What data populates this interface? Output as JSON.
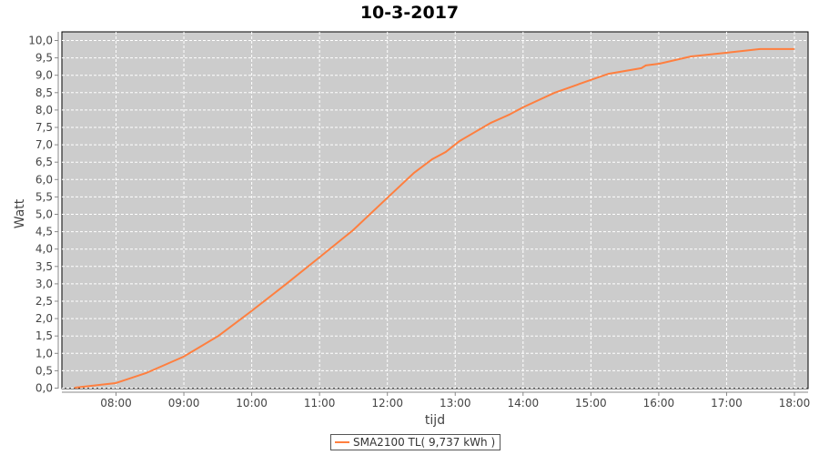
{
  "chart_data": {
    "type": "line",
    "title": "10-3-2017",
    "xlabel": "tijd",
    "ylabel": "Watt",
    "ylim": [
      0,
      10
    ],
    "yticks": [
      "0,0",
      "0,5",
      "1,0",
      "1,5",
      "2,0",
      "2,5",
      "3,0",
      "3,5",
      "4,0",
      "4,5",
      "5,0",
      "5,5",
      "6,0",
      "6,5",
      "7,0",
      "7,5",
      "8,0",
      "8,5",
      "9,0",
      "9,5",
      "10,0"
    ],
    "xticks": [
      "08:00",
      "09:00",
      "10:00",
      "11:00",
      "12:00",
      "13:00",
      "14:00",
      "15:00",
      "16:00",
      "17:00",
      "18:00"
    ],
    "grid": true,
    "legend_position": "bottom",
    "colors": {
      "series": "#ff7f3f",
      "plot_bg": "#cccccc",
      "grid": "#ffffff"
    },
    "series": [
      {
        "name": "SMA2100 TL( 9,737 kWh )",
        "x": [
          "07:24",
          "08:00",
          "08:27",
          "09:00",
          "09:31",
          "10:00",
          "10:30",
          "11:00",
          "11:30",
          "12:00",
          "12:24",
          "12:40",
          "12:52",
          "13:04",
          "13:32",
          "13:48",
          "14:00",
          "14:28",
          "15:00",
          "15:16",
          "15:45",
          "15:49",
          "16:01",
          "16:29",
          "16:59",
          "17:30",
          "18:00"
        ],
        "y": [
          0,
          0.13,
          0.42,
          0.89,
          1.49,
          2.2,
          2.96,
          3.74,
          4.53,
          5.45,
          6.18,
          6.57,
          6.78,
          7.09,
          7.62,
          7.85,
          8.06,
          8.48,
          8.85,
          9.03,
          9.19,
          9.27,
          9.32,
          9.53,
          9.63,
          9.74,
          9.74
        ]
      }
    ]
  }
}
